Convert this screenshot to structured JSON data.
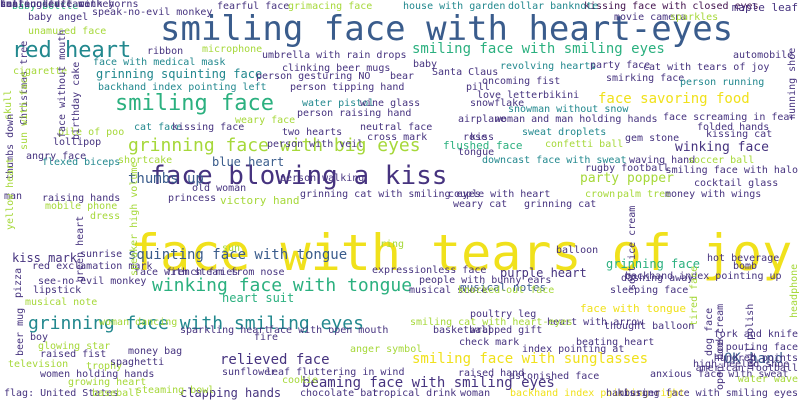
{
  "palette": {
    "yellow": "#f0e11c",
    "green": "#2bb07f",
    "teal": "#22888e",
    "blue": "#3a5c8c",
    "purple": "#46337f",
    "dark": "#40104d",
    "lime": "#a6d83a",
    "mid": "#2a7a8e"
  },
  "words": [
    {
      "t": "face with tears of joy"
    },
    {
      "t": "smiling face with heart-eyes"
    },
    {
      "t": "face blowing a kiss"
    },
    {
      "t": "red heart"
    },
    {
      "t": "smiling face"
    },
    {
      "t": "grinning face with big eyes"
    },
    {
      "t": "winking face with tongue"
    },
    {
      "t": "grinning face with smiling eyes"
    },
    {
      "t": "smiling face with smiling eyes"
    },
    {
      "t": "face savoring food"
    },
    {
      "t": "smiling face with sunglasses"
    },
    {
      "t": "beaming face with smiling eyes"
    },
    {
      "t": "squinting face with tongue"
    },
    {
      "t": "thumbs up"
    },
    {
      "t": "relieved face"
    },
    {
      "t": "OK hand"
    },
    {
      "t": "winking face"
    },
    {
      "t": "party popper"
    },
    {
      "t": "clapping hands"
    },
    {
      "t": "grinning squinting face"
    },
    {
      "t": "blue heart"
    },
    {
      "t": "kiss mark"
    },
    {
      "t": "purple heart"
    },
    {
      "t": "grinning face"
    },
    {
      "t": "heart suit"
    },
    {
      "t": "victory hand"
    },
    {
      "t": "flushed face"
    },
    {
      "t": "face with tongue"
    },
    {
      "t": "musical notes"
    },
    {
      "t": "kissing face with closed eyes"
    },
    {
      "t": "maple leaf"
    },
    {
      "t": "movie camera"
    },
    {
      "t": "sparkles"
    },
    {
      "t": "house with garden"
    },
    {
      "t": "dollar banknote"
    },
    {
      "t": "baby bottle"
    },
    {
      "t": "speak-no-evil monkey"
    },
    {
      "t": "fearful face"
    },
    {
      "t": "grimacing face"
    },
    {
      "t": "baby angel"
    },
    {
      "t": "unamused face"
    },
    {
      "t": "ribbon"
    },
    {
      "t": "umbrella with rain drops"
    },
    {
      "t": "cat with tears of joy"
    },
    {
      "t": "automobile"
    },
    {
      "t": "microphone"
    },
    {
      "t": "face with medical mask"
    },
    {
      "t": "clinking beer mugs"
    },
    {
      "t": "baby"
    },
    {
      "t": "revolving hearts"
    },
    {
      "t": "party face"
    },
    {
      "t": "cigarette"
    },
    {
      "t": "person gesturing NO"
    },
    {
      "t": "bear"
    },
    {
      "t": "Santa Claus"
    },
    {
      "t": "smirking face"
    },
    {
      "t": "person running"
    },
    {
      "t": "backhand index pointing left"
    },
    {
      "t": "person tipping hand"
    },
    {
      "t": "oncoming fist"
    },
    {
      "t": "pill"
    },
    {
      "t": "water pistol"
    },
    {
      "t": "wine glass"
    },
    {
      "t": "love letter"
    },
    {
      "t": "bikini"
    },
    {
      "t": "snowflake"
    },
    {
      "t": "person raising hand"
    },
    {
      "t": "snowman without snow"
    },
    {
      "t": "weary face"
    },
    {
      "t": "airplane"
    },
    {
      "t": "woman and man holding hands"
    },
    {
      "t": "face screaming in fear"
    },
    {
      "t": "cat face"
    },
    {
      "t": "kissing face"
    },
    {
      "t": "neutral face"
    },
    {
      "t": "folded hands"
    },
    {
      "t": "two hearts"
    },
    {
      "t": "cross mark"
    },
    {
      "t": "kiss"
    },
    {
      "t": "sweat droplets"
    },
    {
      "t": "gem stone"
    },
    {
      "t": "kissing cat"
    },
    {
      "t": "pile of poo"
    },
    {
      "t": "lollipop"
    },
    {
      "t": "confetti ball"
    },
    {
      "t": "person with veil"
    },
    {
      "t": "tongue"
    },
    {
      "t": "rose"
    },
    {
      "t": "flexed biceps"
    },
    {
      "t": "shortcake"
    },
    {
      "t": "person walking"
    },
    {
      "t": "downcast face with sweat"
    },
    {
      "t": "waving hand"
    },
    {
      "t": "soccer ball"
    },
    {
      "t": "rugby football"
    },
    {
      "t": "smiling face with halo"
    },
    {
      "t": "cocktail glass"
    },
    {
      "t": "angry face"
    },
    {
      "t": "old woman"
    },
    {
      "t": "grinning cat with smiling eyes"
    },
    {
      "t": "couple with heart"
    },
    {
      "t": "raising hands"
    },
    {
      "t": "princess"
    },
    {
      "t": "palm tree"
    },
    {
      "t": "money with wings"
    },
    {
      "t": "man"
    },
    {
      "t": "weary cat"
    },
    {
      "t": "grinning cat"
    },
    {
      "t": "mobile phone"
    },
    {
      "t": "crown"
    },
    {
      "t": "dress"
    },
    {
      "t": "sun"
    },
    {
      "t": "face with steam from nose"
    },
    {
      "t": "ring"
    },
    {
      "t": "people with bunny ears"
    },
    {
      "t": "balloon"
    },
    {
      "t": "dashing away"
    },
    {
      "t": "sunrise"
    },
    {
      "t": "musical score"
    },
    {
      "t": "knocked-out face"
    },
    {
      "t": "red exclamation mark"
    },
    {
      "t": "french fries"
    },
    {
      "t": "expressionless face"
    },
    {
      "t": "hot beverage"
    },
    {
      "t": "bomb"
    },
    {
      "t": "backhand index pointing up"
    },
    {
      "t": "glowing star"
    },
    {
      "t": "see-no-evil monkey"
    },
    {
      "t": "check mark"
    },
    {
      "t": "sleeping face"
    },
    {
      "t": "lipstick"
    },
    {
      "t": "musical note"
    },
    {
      "t": "woman dancing"
    },
    {
      "t": "sparkling heart"
    },
    {
      "t": "face with open mouth"
    },
    {
      "t": "basketball"
    },
    {
      "t": "wrapped gift"
    },
    {
      "t": "heart with arrow"
    },
    {
      "t": "thought balloon"
    },
    {
      "t": "fork and knife"
    },
    {
      "t": "pouting face"
    },
    {
      "t": "boy"
    },
    {
      "t": "trophy"
    },
    {
      "t": "sunflower"
    },
    {
      "t": "leaf fluttering in wind"
    },
    {
      "t": "fire"
    },
    {
      "t": "poultry leg"
    },
    {
      "t": "smiling cat with heart-eyes"
    },
    {
      "t": "index pointing at"
    },
    {
      "t": "high-heeled shoe"
    },
    {
      "t": "raised fist"
    },
    {
      "t": "spaghetti"
    },
    {
      "t": "money bag"
    },
    {
      "t": "anger symbol"
    },
    {
      "t": "raised hand"
    },
    {
      "t": "beating heart"
    },
    {
      "t": "hundred points"
    },
    {
      "t": "american football"
    },
    {
      "t": "television"
    },
    {
      "t": "steaming bowl"
    },
    {
      "t": "women holding hands"
    },
    {
      "t": "astonished face"
    },
    {
      "t": "anxious face with sweat"
    },
    {
      "t": "water wave"
    },
    {
      "t": "growing heart"
    },
    {
      "t": "cookie"
    },
    {
      "t": "tropical drink"
    },
    {
      "t": "woman"
    },
    {
      "t": "flag: United States"
    },
    {
      "t": "baseball"
    },
    {
      "t": "chocolate bar"
    },
    {
      "t": "backhand index pointing right"
    },
    {
      "t": "hamburger"
    },
    {
      "t": "kissing face with smiling eyes"
    },
    {
      "t": "skull"
    },
    {
      "t": "Christmas tree"
    },
    {
      "t": "sun with face"
    },
    {
      "t": "face without mouth"
    },
    {
      "t": "birthday cake"
    },
    {
      "t": "thumbs down"
    },
    {
      "t": "yellow heart"
    },
    {
      "t": "green heart"
    },
    {
      "t": "pizza"
    },
    {
      "t": "beer mug"
    },
    {
      "t": "speaker high volume"
    },
    {
      "t": "soft ice cream"
    },
    {
      "t": "tired face"
    },
    {
      "t": "dog face"
    },
    {
      "t": "ice cream"
    },
    {
      "t": "open book"
    },
    {
      "t": "nail polish"
    },
    {
      "t": "headphone"
    },
    {
      "t": "running shoe"
    },
    {
      "t": "fallen leaf"
    },
    {
      "t": "hear-no-evil monkey"
    },
    {
      "t": "confounded face"
    },
    {
      "t": "smiling face with horns"
    }
  ]
}
